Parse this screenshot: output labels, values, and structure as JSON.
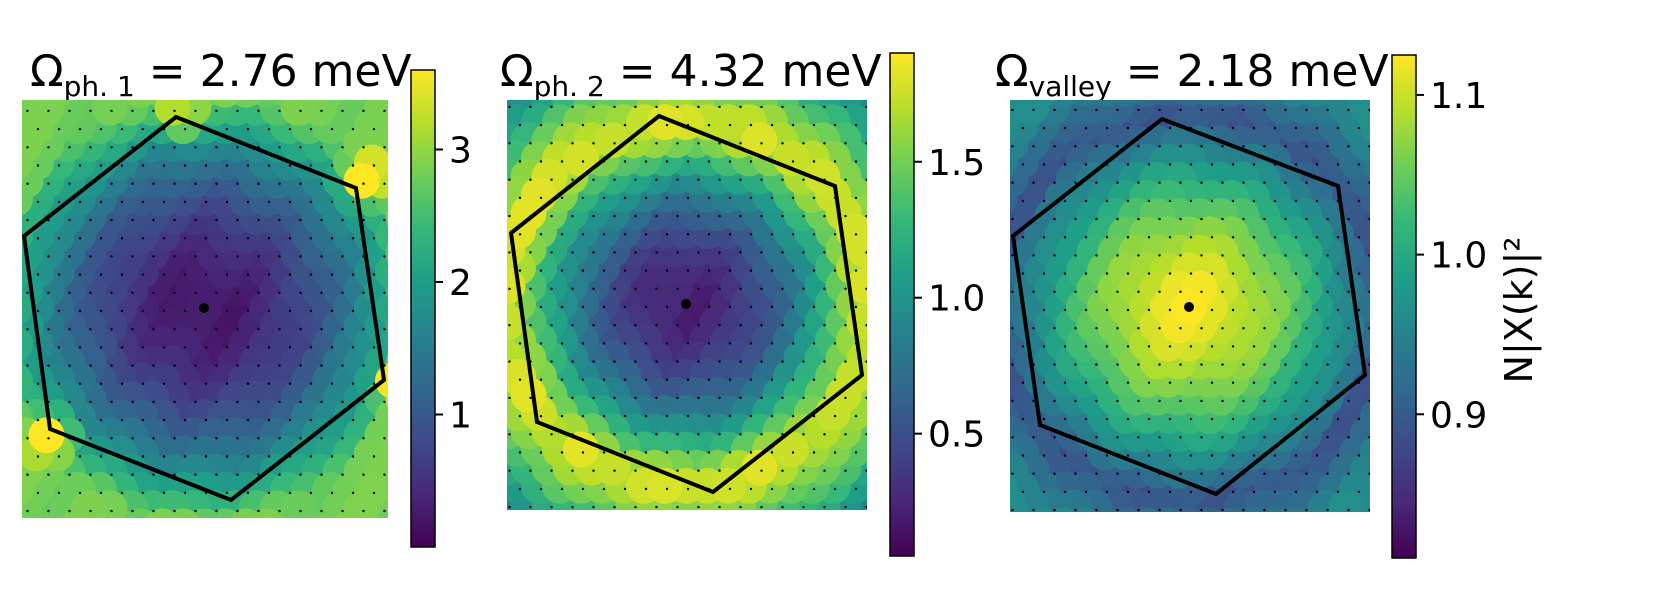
{
  "colors": {
    "viridis": [
      "#440154",
      "#482878",
      "#3e4a89",
      "#31688e",
      "#26828e",
      "#1f9e89",
      "#35b779",
      "#6ece58",
      "#b5de2b",
      "#fde725"
    ],
    "outline": "#000000",
    "dot": "#000000"
  },
  "chart_data": [
    {
      "type": "heatmap",
      "title": "Ω_{ph. 1} = 2.76 meV",
      "title_sym": "Ω",
      "title_sub": "ph. 1",
      "title_rest": " = 2.76 meV",
      "colorbar": {
        "min": 0.0,
        "max": 3.6,
        "ticks": [
          1,
          2,
          3
        ],
        "tick_labels": [
          "1",
          "2",
          "3"
        ],
        "label": ""
      },
      "field": {
        "pattern": "ring",
        "center_value": 0.2,
        "edge_value": 2.2,
        "ring_radius": 1.0,
        "hotspot_value": 3.5,
        "hotspots": [
          [
            -0.12,
            1.0
          ],
          [
            -0.79,
            -0.67
          ],
          [
            0.99,
            -0.39
          ],
          [
            0.84,
            0.67
          ]
        ]
      }
    },
    {
      "type": "heatmap",
      "title": "Ω_{ph. 2} = 4.32 meV",
      "title_sym": "Ω",
      "title_sub": "ph. 2",
      "title_rest": " = 4.32 meV",
      "colorbar": {
        "min": 0.05,
        "max": 1.9,
        "ticks": [
          0.5,
          1.0,
          1.5
        ],
        "tick_labels": [
          "0.5",
          "1.0",
          "1.5"
        ],
        "label": ""
      },
      "field": {
        "pattern": "annulus",
        "center_value": 0.2,
        "peak_value": 1.8,
        "peak_radius": 0.95,
        "outer_value": 0.9
      }
    },
    {
      "type": "heatmap",
      "title": "Ω_{valley} = 2.18 meV",
      "title_sym": "Ω",
      "title_sub": "valley",
      "title_rest": " = 2.18 meV",
      "colorbar": {
        "min": 0.81,
        "max": 1.125,
        "ticks": [
          0.9,
          1.0,
          1.1
        ],
        "tick_labels": [
          "0.9",
          "1.0",
          "1.1"
        ],
        "label": "N|X(k)|²"
      },
      "field": {
        "pattern": "peak",
        "center_value": 1.12,
        "edge_value": 0.88,
        "outer_value": 0.96
      }
    }
  ]
}
